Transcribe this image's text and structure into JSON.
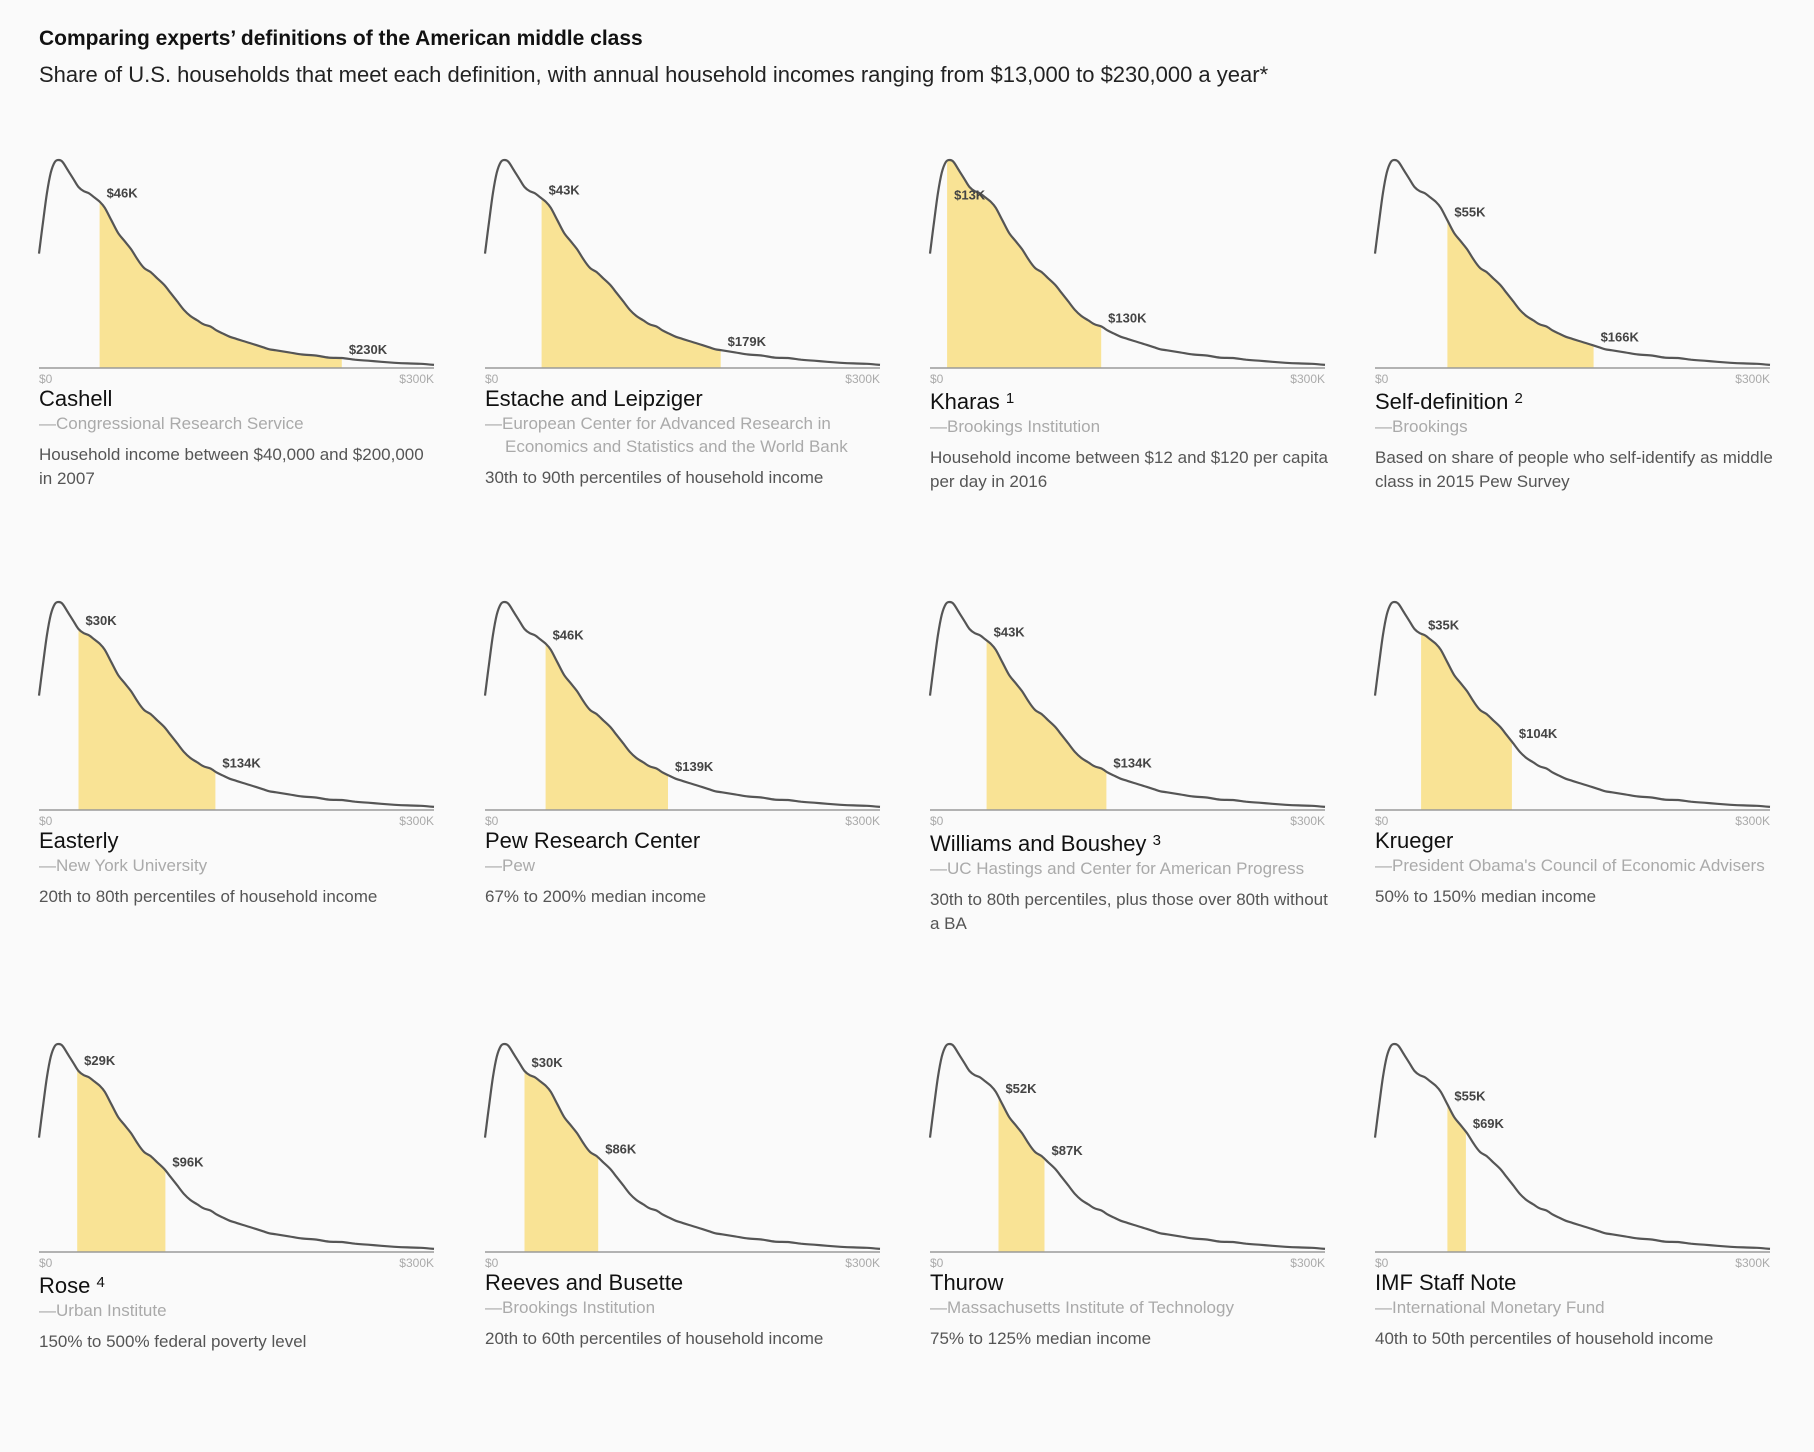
{
  "header": {
    "title": "Comparing experts’ definitions of the American middle class",
    "subtitle": "Share of U.S. households that meet each definition, with annual household incomes ranging from $13,000 to $230,000 a year*"
  },
  "colors": {
    "band": "#f9e395",
    "curve": "#555555",
    "baseline": "#999999"
  },
  "chart_data": [
    {
      "type": "area",
      "name": "Cashell",
      "sup": "",
      "source": "—Congressional Research Service",
      "description": "Household income between $40,000 and $200,000 in 2007",
      "lower_k": 46,
      "upper_k": 230,
      "lower_label": "$46K",
      "upper_label": "$230K",
      "xlim": [
        0,
        300
      ],
      "tick_labels": [
        "$0",
        "$300K"
      ]
    },
    {
      "type": "area",
      "name": "Estache and Leipziger",
      "sup": "",
      "source": "—European Center for Advanced Research in Economics and Statistics and the World Bank",
      "description": "30th to 90th percentiles of household income",
      "lower_k": 43,
      "upper_k": 179,
      "lower_label": "$43K",
      "upper_label": "$179K",
      "xlim": [
        0,
        300
      ],
      "tick_labels": [
        "$0",
        "$300K"
      ]
    },
    {
      "type": "area",
      "name": "Kharas",
      "sup": "1",
      "source": "—Brookings Institution",
      "description": "Household income between $12 and $120 per capita per day in 2016",
      "lower_k": 13,
      "upper_k": 130,
      "lower_label": "$13K",
      "upper_label": "$130K",
      "xlim": [
        0,
        300
      ],
      "tick_labels": [
        "$0",
        "$300K"
      ]
    },
    {
      "type": "area",
      "name": "Self-definition",
      "sup": "2",
      "source": "—Brookings",
      "description": "Based on share of people who self-identify as middle class in 2015 Pew Survey",
      "lower_k": 55,
      "upper_k": 166,
      "lower_label": "$55K",
      "upper_label": "$166K",
      "xlim": [
        0,
        300
      ],
      "tick_labels": [
        "$0",
        "$300K"
      ]
    },
    {
      "type": "area",
      "name": "Easterly",
      "sup": "",
      "source": "—New York University",
      "description": "20th to 80th percentiles of household income",
      "lower_k": 30,
      "upper_k": 134,
      "lower_label": "$30K",
      "upper_label": "$134K",
      "xlim": [
        0,
        300
      ],
      "tick_labels": [
        "$0",
        "$300K"
      ]
    },
    {
      "type": "area",
      "name": "Pew Research Center",
      "sup": "",
      "source": "—Pew",
      "description": "67% to 200% median income",
      "lower_k": 46,
      "upper_k": 139,
      "lower_label": "$46K",
      "upper_label": "$139K",
      "xlim": [
        0,
        300
      ],
      "tick_labels": [
        "$0",
        "$300K"
      ]
    },
    {
      "type": "area",
      "name": "Williams and Boushey",
      "sup": "3",
      "source": "—UC Hastings and Center for American Progress",
      "description": "30th to 80th percentiles, plus those over 80th without a BA",
      "lower_k": 43,
      "upper_k": 134,
      "lower_label": "$43K",
      "upper_label": "$134K",
      "xlim": [
        0,
        300
      ],
      "tick_labels": [
        "$0",
        "$300K"
      ]
    },
    {
      "type": "area",
      "name": "Krueger",
      "sup": "",
      "source": "—President Obama's Council of Economic Advisers",
      "description": "50% to 150% median income",
      "lower_k": 35,
      "upper_k": 104,
      "lower_label": "$35K",
      "upper_label": "$104K",
      "xlim": [
        0,
        300
      ],
      "tick_labels": [
        "$0",
        "$300K"
      ]
    },
    {
      "type": "area",
      "name": "Rose",
      "sup": "4",
      "source": "—Urban Institute",
      "description": "150% to 500% federal poverty level",
      "lower_k": 29,
      "upper_k": 96,
      "lower_label": "$29K",
      "upper_label": "$96K",
      "xlim": [
        0,
        300
      ],
      "tick_labels": [
        "$0",
        "$300K"
      ]
    },
    {
      "type": "area",
      "name": "Reeves and Busette",
      "sup": "",
      "source": "—Brookings Institution",
      "description": "20th to 60th percentiles of household income",
      "lower_k": 30,
      "upper_k": 86,
      "lower_label": "$30K",
      "upper_label": "$86K",
      "xlim": [
        0,
        300
      ],
      "tick_labels": [
        "$0",
        "$300K"
      ]
    },
    {
      "type": "area",
      "name": "Thurow",
      "sup": "",
      "source": "—Massachusetts Institute of Technology",
      "description": "75% to 125% median income",
      "lower_k": 52,
      "upper_k": 87,
      "lower_label": "$52K",
      "upper_label": "$87K",
      "xlim": [
        0,
        300
      ],
      "tick_labels": [
        "$0",
        "$300K"
      ]
    },
    {
      "type": "area",
      "name": "IMF Staff Note",
      "sup": "",
      "source": "—International Monetary Fund",
      "description": "40th to 50th percentiles of household income",
      "lower_k": 55,
      "upper_k": 69,
      "lower_label": "$55K",
      "upper_label": "$69K",
      "xlim": [
        0,
        300
      ],
      "tick_labels": [
        "$0",
        "$300K"
      ]
    }
  ]
}
